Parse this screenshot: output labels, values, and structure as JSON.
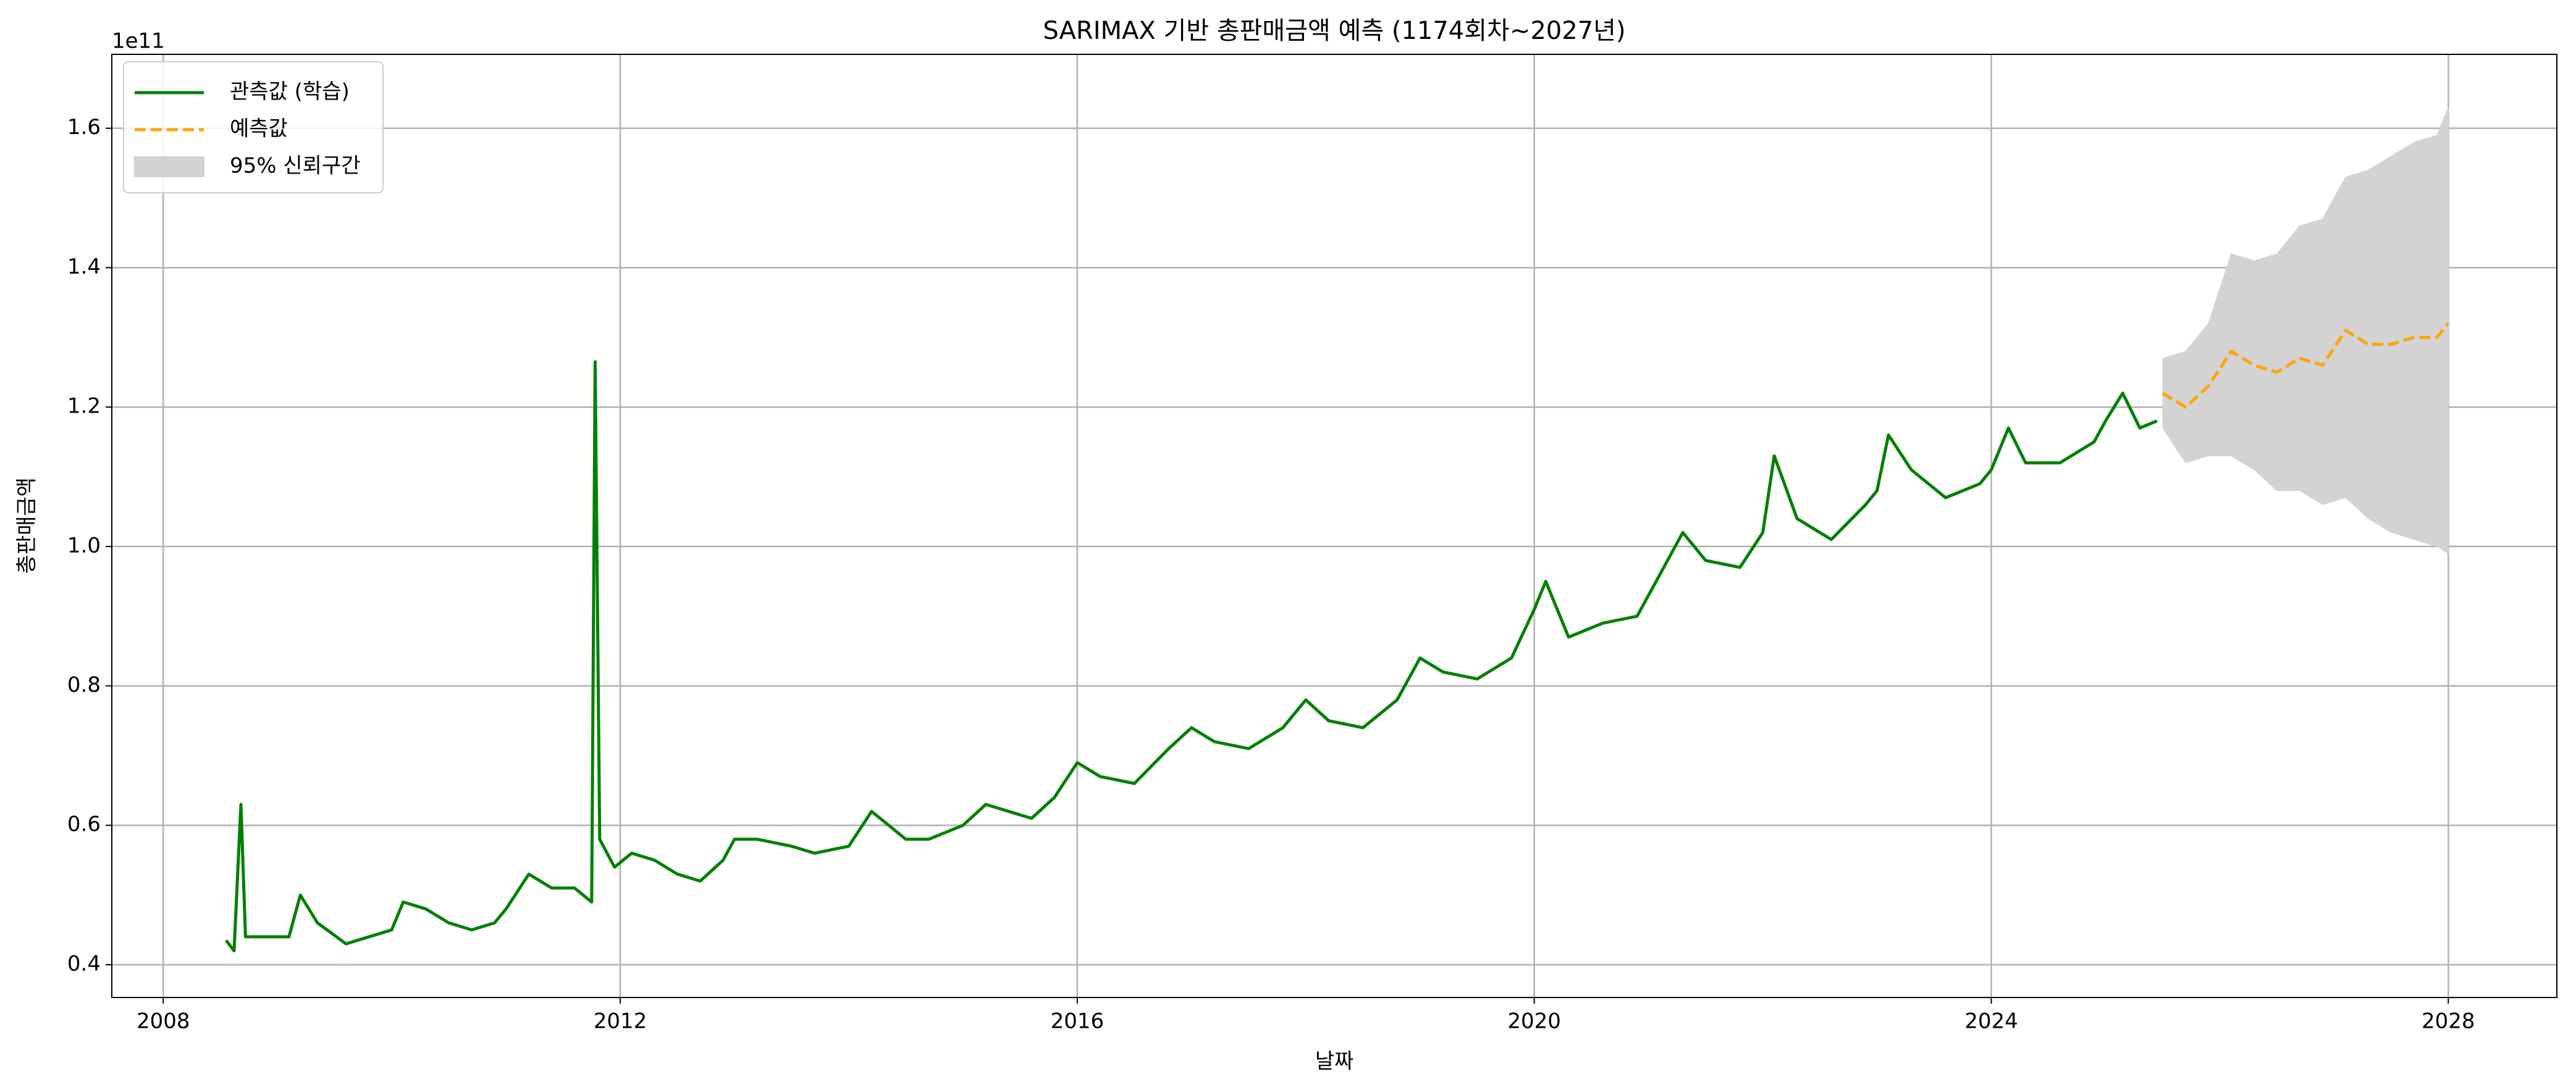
{
  "chart_data": {
    "type": "line",
    "title": "SARIMAX 기반 총판매금액 예측 (1174회차~2027년)",
    "x_label": "날짜",
    "y_label": "총판매금액",
    "y_offset_label": "1e11",
    "xlim": [
      2007.55,
      2028.95
    ],
    "ylim": [
      0.353,
      1.706
    ],
    "xticks": [
      2008,
      2012,
      2016,
      2020,
      2024,
      2028
    ],
    "yticks": [
      0.4,
      0.6,
      0.8,
      {
        "value": 1,
        "label": "1.0"
      },
      1.2,
      1.4,
      1.6
    ],
    "grid": true,
    "legend": "upper-left",
    "series": [
      {
        "name": "관측값 (학습)",
        "color": "#008000",
        "style": "solid",
        "x": [
          2008.55,
          2008.62,
          2008.68,
          2008.72,
          2008.9,
          2009.1,
          2009.2,
          2009.35,
          2009.6,
          2009.8,
          2010.0,
          2010.1,
          2010.3,
          2010.5,
          2010.7,
          2010.9,
          2011.0,
          2011.2,
          2011.4,
          2011.6,
          2011.75,
          2011.78,
          2011.82,
          2011.95,
          2012.1,
          2012.3,
          2012.5,
          2012.7,
          2012.9,
          2013.0,
          2013.2,
          2013.5,
          2013.7,
          2014.0,
          2014.2,
          2014.5,
          2014.7,
          2015.0,
          2015.2,
          2015.4,
          2015.6,
          2015.8,
          2016.0,
          2016.2,
          2016.5,
          2016.8,
          2017.0,
          2017.2,
          2017.5,
          2017.8,
          2018.0,
          2018.2,
          2018.5,
          2018.8,
          2019.0,
          2019.2,
          2019.5,
          2019.8,
          2020.0,
          2020.1,
          2020.3,
          2020.6,
          2020.9,
          2021.1,
          2021.3,
          2021.5,
          2021.8,
          2022.0,
          2022.1,
          2022.3,
          2022.6,
          2022.9,
          2023.0,
          2023.1,
          2023.3,
          2023.6,
          2023.9,
          2024.0,
          2024.15,
          2024.3,
          2024.6,
          2024.9,
          2025.0,
          2025.15,
          2025.3,
          2025.45
        ],
        "values": [
          0.435,
          0.42,
          0.63,
          0.44,
          0.44,
          0.44,
          0.5,
          0.46,
          0.43,
          0.44,
          0.45,
          0.49,
          0.48,
          0.46,
          0.45,
          0.46,
          0.48,
          0.53,
          0.51,
          0.51,
          0.49,
          1.265,
          0.58,
          0.54,
          0.56,
          0.55,
          0.53,
          0.52,
          0.55,
          0.58,
          0.58,
          0.57,
          0.56,
          0.57,
          0.62,
          0.58,
          0.58,
          0.6,
          0.63,
          0.62,
          0.61,
          0.64,
          0.69,
          0.67,
          0.66,
          0.71,
          0.74,
          0.72,
          0.71,
          0.74,
          0.78,
          0.75,
          0.74,
          0.78,
          0.84,
          0.82,
          0.81,
          0.84,
          0.91,
          0.95,
          0.87,
          0.89,
          0.9,
          0.96,
          1.02,
          0.98,
          0.97,
          1.02,
          1.13,
          1.04,
          1.01,
          1.06,
          1.08,
          1.16,
          1.11,
          1.07,
          1.09,
          1.11,
          1.17,
          1.12,
          1.12,
          1.15,
          1.18,
          1.22,
          1.17,
          1.18
        ]
      },
      {
        "name": "예측값",
        "color": "#ffa500",
        "style": "dashed",
        "x": [
          2025.5,
          2025.7,
          2025.9,
          2026.1,
          2026.3,
          2026.5,
          2026.7,
          2026.9,
          2027.1,
          2027.3,
          2027.5,
          2027.7,
          2027.9,
          2028.0
        ],
        "values": [
          1.22,
          1.2,
          1.23,
          1.28,
          1.26,
          1.25,
          1.27,
          1.26,
          1.31,
          1.29,
          1.29,
          1.3,
          1.3,
          1.32
        ]
      },
      {
        "name": "95% 신뢰구간",
        "color": "#d3d3d3",
        "style": "band",
        "x": [
          2025.5,
          2025.7,
          2025.9,
          2026.1,
          2026.3,
          2026.5,
          2026.7,
          2026.9,
          2027.1,
          2027.3,
          2027.5,
          2027.7,
          2027.9,
          2028.0
        ],
        "lower": [
          1.17,
          1.12,
          1.13,
          1.13,
          1.11,
          1.08,
          1.08,
          1.06,
          1.07,
          1.04,
          1.02,
          1.01,
          1.0,
          0.99
        ],
        "upper": [
          1.27,
          1.28,
          1.32,
          1.42,
          1.41,
          1.42,
          1.46,
          1.47,
          1.53,
          1.54,
          1.56,
          1.58,
          1.59,
          1.63
        ]
      }
    ]
  }
}
